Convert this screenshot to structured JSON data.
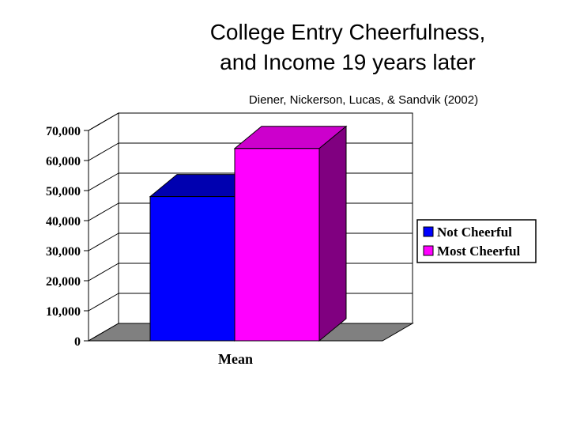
{
  "chart_data": {
    "type": "bar",
    "title_lines": [
      "College Entry Cheerfulness,",
      "and Income 19 years later"
    ],
    "subtitle": "Diener, Nickerson, Lucas, & Sandvik (2002)",
    "categories": [
      "Mean"
    ],
    "series": [
      {
        "name": "Not Cheerful",
        "values": [
          48000
        ],
        "color": "#0000ff",
        "top_color": "#0000b0",
        "side_color": "#000080"
      },
      {
        "name": "Most Cheerful",
        "values": [
          64000
        ],
        "color": "#ff00ff",
        "top_color": "#cc00cc",
        "side_color": "#800080"
      }
    ],
    "ylim": [
      0,
      70000
    ],
    "yticks": [
      0,
      10000,
      20000,
      30000,
      40000,
      50000,
      60000,
      70000
    ],
    "ytick_labels": [
      "0",
      "10,000",
      "20,000",
      "30,000",
      "40,000",
      "50,000",
      "60,000",
      "70,000"
    ],
    "grid": true,
    "legend_position": "right",
    "floor_color": "#808080"
  }
}
